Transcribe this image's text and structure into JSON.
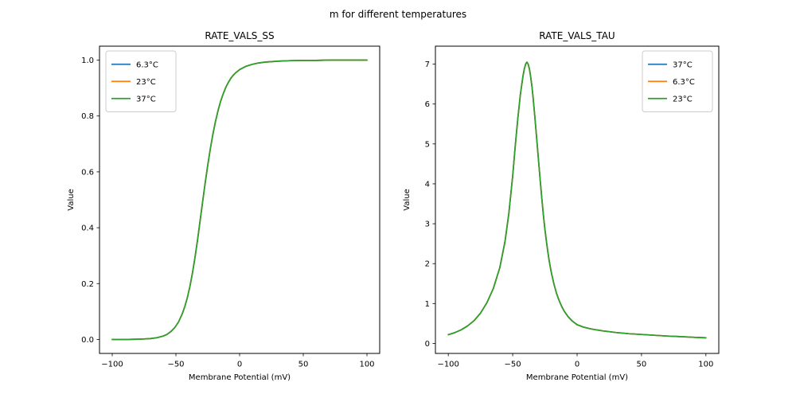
{
  "figure": {
    "suptitle": "m for different temperatures",
    "background": "#ffffff",
    "text_color": "#000000",
    "legend_border_color": "#cccccc"
  },
  "chart_data": [
    {
      "type": "line",
      "title": "RATE_VALS_SS",
      "xlabel": "Membrane Potential (mV)",
      "ylabel": "Value",
      "xlim": [
        -110,
        110
      ],
      "ylim": [
        -0.05,
        1.05
      ],
      "xticks": [
        -100,
        -50,
        0,
        50,
        100
      ],
      "xtick_labels": [
        "−100",
        "−50",
        "0",
        "50",
        "100"
      ],
      "yticks": [
        0.0,
        0.2,
        0.4,
        0.6,
        0.8,
        1.0
      ],
      "ytick_labels": [
        "0.0",
        "0.2",
        "0.4",
        "0.6",
        "0.8",
        "1.0"
      ],
      "grid": false,
      "legend": {
        "position": "upper-left"
      },
      "series": [
        {
          "name": "6.3°C",
          "color": "#1f77b4"
        },
        {
          "name": "23°C",
          "color": "#ff7f0e"
        },
        {
          "name": "37°C",
          "color": "#2ca02c"
        }
      ],
      "series_note": "all three temperature curves are identical and overlap exactly; the green curve drawn last is the visible one",
      "x": [
        -100,
        -90,
        -80,
        -75,
        -70,
        -65,
        -60,
        -57,
        -54,
        -51,
        -48,
        -45,
        -43,
        -41,
        -39,
        -37,
        -35,
        -33,
        -31,
        -29,
        -27,
        -25,
        -23,
        -21,
        -19,
        -17,
        -15,
        -13,
        -11,
        -9,
        -7,
        -5,
        -3,
        0,
        5,
        10,
        15,
        20,
        30,
        40,
        50,
        60,
        70,
        80,
        90,
        100
      ],
      "y": [
        0.0,
        0.0,
        0.001,
        0.002,
        0.003,
        0.006,
        0.012,
        0.018,
        0.028,
        0.042,
        0.062,
        0.092,
        0.118,
        0.15,
        0.19,
        0.238,
        0.294,
        0.357,
        0.425,
        0.494,
        0.561,
        0.624,
        0.682,
        0.734,
        0.779,
        0.818,
        0.851,
        0.878,
        0.901,
        0.919,
        0.934,
        0.946,
        0.955,
        0.966,
        0.978,
        0.985,
        0.99,
        0.993,
        0.996,
        0.998,
        0.999,
        0.999,
        1.0,
        1.0,
        1.0,
        1.0
      ]
    },
    {
      "type": "line",
      "title": "RATE_VALS_TAU",
      "xlabel": "Membrane Potential (mV)",
      "ylabel": "Value",
      "xlim": [
        -110,
        110
      ],
      "ylim": [
        -0.25,
        7.45
      ],
      "xticks": [
        -100,
        -50,
        0,
        50,
        100
      ],
      "xtick_labels": [
        "−100",
        "−50",
        "0",
        "50",
        "100"
      ],
      "yticks": [
        0,
        1,
        2,
        3,
        4,
        5,
        6,
        7
      ],
      "ytick_labels": [
        "0",
        "1",
        "2",
        "3",
        "4",
        "5",
        "6",
        "7"
      ],
      "grid": false,
      "legend": {
        "position": "upper-right"
      },
      "series": [
        {
          "name": "37°C",
          "color": "#1f77b4"
        },
        {
          "name": "6.3°C",
          "color": "#ff7f0e"
        },
        {
          "name": "23°C",
          "color": "#2ca02c"
        }
      ],
      "series_note": "all three temperature curves are identical and overlap exactly; the green curve drawn last is the visible one; peak ~7.05 near -39 mV",
      "x": [
        -100,
        -95,
        -90,
        -85,
        -80,
        -75,
        -70,
        -65,
        -60,
        -56,
        -53,
        -50,
        -48,
        -46,
        -44,
        -42,
        -41,
        -40,
        -39,
        -38,
        -37,
        -36,
        -35,
        -34,
        -33,
        -32,
        -31,
        -30,
        -29,
        -28,
        -27,
        -26,
        -25,
        -24,
        -23,
        -22,
        -21,
        -20,
        -18,
        -16,
        -14,
        -12,
        -10,
        -7,
        -4,
        0,
        5,
        10,
        15,
        20,
        25,
        30,
        40,
        50,
        60,
        70,
        80,
        90,
        100
      ],
      "y": [
        0.22,
        0.27,
        0.34,
        0.44,
        0.57,
        0.76,
        1.02,
        1.38,
        1.9,
        2.55,
        3.25,
        4.2,
        4.95,
        5.65,
        6.25,
        6.7,
        6.88,
        7.0,
        7.05,
        7.0,
        6.88,
        6.68,
        6.42,
        6.1,
        5.75,
        5.38,
        5.0,
        4.6,
        4.22,
        3.85,
        3.5,
        3.17,
        2.87,
        2.6,
        2.36,
        2.14,
        1.95,
        1.78,
        1.49,
        1.26,
        1.08,
        0.93,
        0.81,
        0.67,
        0.57,
        0.47,
        0.41,
        0.37,
        0.34,
        0.315,
        0.295,
        0.275,
        0.245,
        0.225,
        0.205,
        0.185,
        0.17,
        0.155,
        0.14
      ]
    }
  ]
}
